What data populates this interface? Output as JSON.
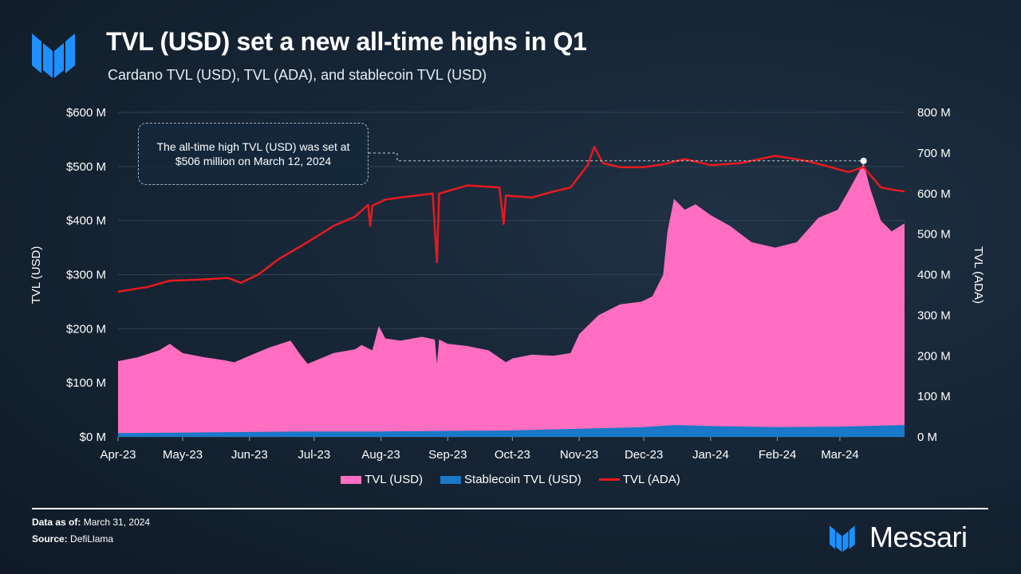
{
  "header": {
    "title": "TVL (USD) set a new all-time highs in Q1",
    "subtitle": "Cardano TVL (USD), TVL (ADA), and stablecoin TVL (USD)"
  },
  "annotation": "The all-time high TVL (USD) was set at $506 million on March 12, 2024",
  "footer": {
    "data_as_of_label": "Data as of:",
    "data_as_of_value": "March 31, 2024",
    "source_label": "Source:",
    "source_value": "DefiLlama",
    "brand": "Messari"
  },
  "colors": {
    "tvl_usd": "#ff6ec0",
    "stablecoin": "#1a78c8",
    "tvl_ada": "#e8191e",
    "brand_blue": "#1e90ff"
  },
  "chart_data": {
    "type": "area",
    "x_labels": [
      "Apr-23",
      "May-23",
      "Jun-23",
      "Jul-23",
      "Aug-23",
      "Sep-23",
      "Oct-23",
      "Nov-23",
      "Dec-23",
      "Jan-24",
      "Feb-24",
      "Mar-24"
    ],
    "xlim": [
      "2023-04-01",
      "2024-03-31"
    ],
    "y_left": {
      "label": "TVL (USD)",
      "ticks": [
        "$0 M",
        "$100 M",
        "$200 M",
        "$300 M",
        "$400 M",
        "$500 M",
        "$600 M"
      ],
      "range": [
        0,
        600
      ]
    },
    "y_right": {
      "label": "TVL (ADA)",
      "ticks": [
        "0 M",
        "100 M",
        "200 M",
        "300 M",
        "400 M",
        "500 M",
        "600 M",
        "700 M",
        "800 M"
      ],
      "range": [
        0,
        800
      ]
    },
    "series": [
      {
        "name": "TVL (USD)",
        "type": "area",
        "axis": "left",
        "points": [
          [
            "2023-04-01",
            140
          ],
          [
            "2023-04-10",
            147
          ],
          [
            "2023-04-20",
            160
          ],
          [
            "2023-04-25",
            172
          ],
          [
            "2023-05-01",
            155
          ],
          [
            "2023-05-10",
            148
          ],
          [
            "2023-05-20",
            142
          ],
          [
            "2023-05-25",
            138
          ],
          [
            "2023-06-01",
            150
          ],
          [
            "2023-06-10",
            165
          ],
          [
            "2023-06-20",
            178
          ],
          [
            "2023-06-25",
            150
          ],
          [
            "2023-06-28",
            135
          ],
          [
            "2023-07-01",
            140
          ],
          [
            "2023-07-10",
            155
          ],
          [
            "2023-07-20",
            162
          ],
          [
            "2023-07-23",
            170
          ],
          [
            "2023-07-28",
            160
          ],
          [
            "2023-07-31",
            205
          ],
          [
            "2023-08-03",
            182
          ],
          [
            "2023-08-10",
            178
          ],
          [
            "2023-08-20",
            185
          ],
          [
            "2023-08-26",
            180
          ],
          [
            "2023-08-27",
            135
          ],
          [
            "2023-08-28",
            180
          ],
          [
            "2023-09-01",
            172
          ],
          [
            "2023-09-10",
            168
          ],
          [
            "2023-09-20",
            160
          ],
          [
            "2023-09-28",
            138
          ],
          [
            "2023-10-01",
            145
          ],
          [
            "2023-10-10",
            152
          ],
          [
            "2023-10-20",
            150
          ],
          [
            "2023-10-28",
            155
          ],
          [
            "2023-11-01",
            190
          ],
          [
            "2023-11-10",
            225
          ],
          [
            "2023-11-20",
            245
          ],
          [
            "2023-11-30",
            250
          ],
          [
            "2023-12-05",
            260
          ],
          [
            "2023-12-10",
            300
          ],
          [
            "2023-12-12",
            380
          ],
          [
            "2023-12-15",
            440
          ],
          [
            "2023-12-20",
            420
          ],
          [
            "2023-12-25",
            430
          ],
          [
            "2024-01-01",
            410
          ],
          [
            "2024-01-10",
            390
          ],
          [
            "2024-01-20",
            360
          ],
          [
            "2024-01-31",
            350
          ],
          [
            "2024-02-10",
            360
          ],
          [
            "2024-02-20",
            405
          ],
          [
            "2024-02-29",
            420
          ],
          [
            "2024-03-05",
            455
          ],
          [
            "2024-03-12",
            506
          ],
          [
            "2024-03-15",
            460
          ],
          [
            "2024-03-20",
            400
          ],
          [
            "2024-03-25",
            380
          ],
          [
            "2024-03-31",
            395
          ]
        ]
      },
      {
        "name": "Stablecoin TVL (USD)",
        "type": "area",
        "axis": "left",
        "points": [
          [
            "2023-04-01",
            7
          ],
          [
            "2023-05-01",
            8
          ],
          [
            "2023-06-01",
            9
          ],
          [
            "2023-07-01",
            10
          ],
          [
            "2023-08-01",
            10
          ],
          [
            "2023-09-01",
            11
          ],
          [
            "2023-10-01",
            12
          ],
          [
            "2023-11-01",
            15
          ],
          [
            "2023-12-01",
            18
          ],
          [
            "2023-12-15",
            22
          ],
          [
            "2024-01-01",
            20
          ],
          [
            "2024-02-01",
            18
          ],
          [
            "2024-03-01",
            19
          ],
          [
            "2024-03-31",
            22
          ]
        ]
      },
      {
        "name": "TVL (ADA)",
        "type": "line",
        "axis": "right",
        "points": [
          [
            "2023-04-01",
            358
          ],
          [
            "2023-04-15",
            370
          ],
          [
            "2023-04-25",
            385
          ],
          [
            "2023-05-10",
            388
          ],
          [
            "2023-05-22",
            392
          ],
          [
            "2023-05-28",
            380
          ],
          [
            "2023-06-05",
            400
          ],
          [
            "2023-06-15",
            440
          ],
          [
            "2023-06-20",
            455
          ],
          [
            "2023-07-01",
            490
          ],
          [
            "2023-07-10",
            520
          ],
          [
            "2023-07-20",
            543
          ],
          [
            "2023-07-26",
            572
          ],
          [
            "2023-07-27",
            520
          ],
          [
            "2023-07-28",
            570
          ],
          [
            "2023-08-03",
            585
          ],
          [
            "2023-08-10",
            590
          ],
          [
            "2023-08-25",
            600
          ],
          [
            "2023-08-27",
            430
          ],
          [
            "2023-08-28",
            600
          ],
          [
            "2023-09-05",
            612
          ],
          [
            "2023-09-10",
            620
          ],
          [
            "2023-09-25",
            615
          ],
          [
            "2023-09-27",
            525
          ],
          [
            "2023-09-28",
            595
          ],
          [
            "2023-10-10",
            590
          ],
          [
            "2023-10-20",
            605
          ],
          [
            "2023-10-28",
            615
          ],
          [
            "2023-11-05",
            670
          ],
          [
            "2023-11-08",
            715
          ],
          [
            "2023-11-12",
            675
          ],
          [
            "2023-11-20",
            665
          ],
          [
            "2023-12-01",
            665
          ],
          [
            "2023-12-10",
            672
          ],
          [
            "2023-12-20",
            685
          ],
          [
            "2024-01-01",
            670
          ],
          [
            "2024-01-15",
            675
          ],
          [
            "2024-01-31",
            693
          ],
          [
            "2024-02-15",
            680
          ],
          [
            "2024-02-20",
            673
          ],
          [
            "2024-03-05",
            653
          ],
          [
            "2024-03-12",
            665
          ],
          [
            "2024-03-20",
            615
          ],
          [
            "2024-03-25",
            610
          ],
          [
            "2024-03-31",
            605
          ]
        ]
      }
    ],
    "ath_marker": {
      "date": "2024-03-12",
      "value": 506,
      "axis": "left"
    },
    "legend": {
      "position": "bottom",
      "entries": [
        "TVL (USD)",
        "Stablecoin TVL (USD)",
        "TVL (ADA)"
      ]
    },
    "grid": true
  }
}
